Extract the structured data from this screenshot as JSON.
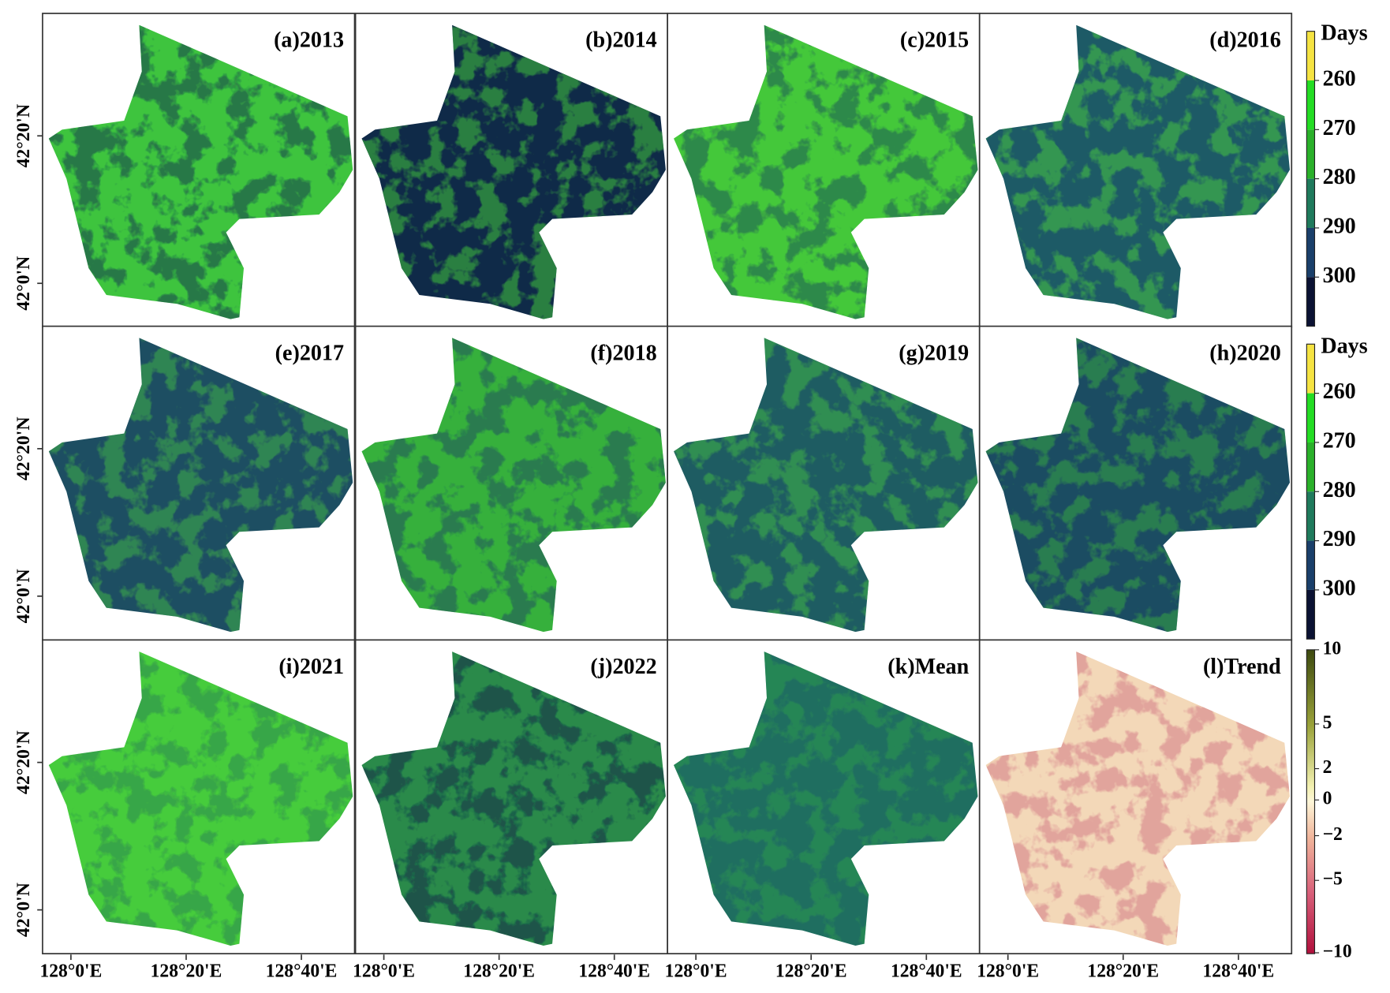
{
  "panels": [
    {
      "label": "(a)2013"
    },
    {
      "label": "(b)2014"
    },
    {
      "label": "(c)2015"
    },
    {
      "label": "(d)2016"
    },
    {
      "label": "(e)2017"
    },
    {
      "label": "(f)2018"
    },
    {
      "label": "(g)2019"
    },
    {
      "label": "(h)2020"
    },
    {
      "label": "(i)2021"
    },
    {
      "label": "(j)2022"
    },
    {
      "label": "(k)Mean"
    },
    {
      "label": "(l)Trend"
    }
  ],
  "y_ticks": [
    "42°20'N",
    "42°0'N"
  ],
  "x_ticks": [
    "128°0'E",
    "128°20'E",
    "128°40'E"
  ],
  "colorbars": {
    "days": {
      "title": "Days",
      "ticks": [
        "260",
        "270",
        "280",
        "290",
        "300"
      ]
    },
    "trend": {
      "ticks": [
        "10",
        "5",
        "2",
        "0",
        "−2",
        "−5",
        "−10"
      ]
    }
  }
}
